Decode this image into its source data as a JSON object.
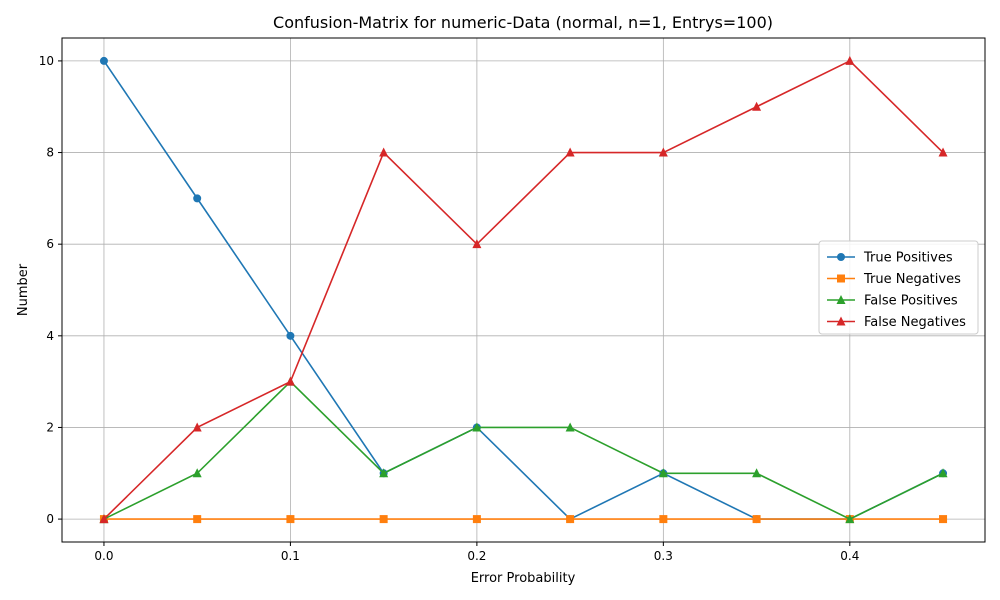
{
  "chart_data": {
    "type": "line",
    "title": "Confusion-Matrix for numeric-Data (normal, n=1, Entrys=100)",
    "xlabel": "Error Probability",
    "ylabel": "Number",
    "x": [
      0.0,
      0.05,
      0.1,
      0.15,
      0.2,
      0.25,
      0.3,
      0.35,
      0.4,
      0.45
    ],
    "xlim": [
      -0.0225,
      0.4725
    ],
    "ylim": [
      -0.5,
      10.5
    ],
    "xticks": [
      0.0,
      0.1,
      0.2,
      0.3,
      0.4
    ],
    "xtick_labels": [
      "0.0",
      "0.1",
      "0.2",
      "0.3",
      "0.4"
    ],
    "yticks": [
      0,
      2,
      4,
      6,
      8,
      10
    ],
    "ytick_labels": [
      "0",
      "2",
      "4",
      "6",
      "8",
      "10"
    ],
    "grid": true,
    "legend_position": "center-right",
    "series": [
      {
        "name": "True Positives",
        "color": "#1f77b4",
        "marker": "circle",
        "values": [
          10,
          7,
          4,
          1,
          2,
          0,
          1,
          0,
          0,
          1
        ]
      },
      {
        "name": "True Negatives",
        "color": "#ff7f0e",
        "marker": "square",
        "values": [
          0,
          0,
          0,
          0,
          0,
          0,
          0,
          0,
          0,
          0
        ]
      },
      {
        "name": "False Positives",
        "color": "#2ca02c",
        "marker": "triangle",
        "values": [
          0,
          1,
          3,
          1,
          2,
          2,
          1,
          1,
          0,
          1
        ]
      },
      {
        "name": "False Negatives",
        "color": "#d62728",
        "marker": "triangle",
        "values": [
          0,
          2,
          3,
          8,
          6,
          8,
          8,
          9,
          10,
          8
        ]
      }
    ]
  }
}
